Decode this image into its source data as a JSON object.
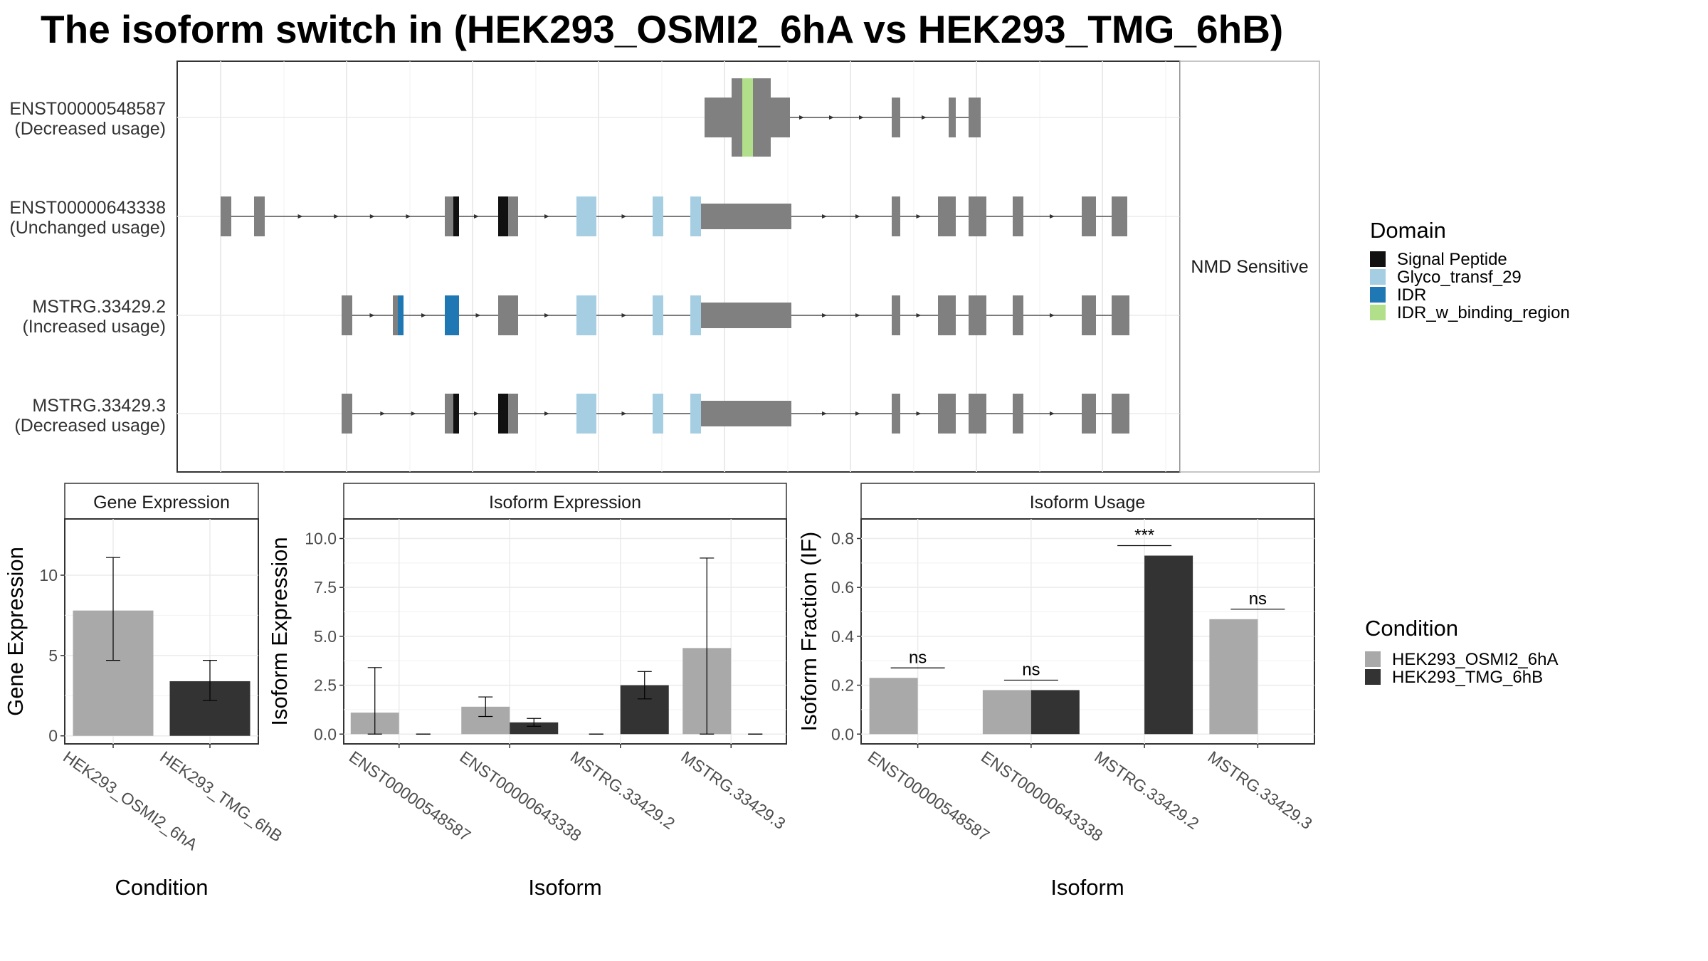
{
  "title": "The isoform switch in  (HEK293_OSMI2_6hA vs HEK293_TMG_6hB)",
  "structure": {
    "strip_label": "NMD Sensitive",
    "transcripts": [
      {
        "name": "ENST00000548587",
        "usage": "(Decreased usage)"
      },
      {
        "name": "ENST00000643338",
        "usage": "(Unchanged usage)"
      },
      {
        "name": "MSTRG.33429.2",
        "usage": "(Increased usage)"
      },
      {
        "name": "MSTRG.33429.3",
        "usage": "(Decreased usage)"
      }
    ]
  },
  "domain_legend": {
    "title": "Domain",
    "items": [
      {
        "label": "Signal Peptide",
        "color": "#111111"
      },
      {
        "label": "Glyco_transf_29",
        "color": "#a6cee3"
      },
      {
        "label": "IDR",
        "color": "#1f78b4"
      },
      {
        "label": "IDR_w_binding_region",
        "color": "#b2df8a"
      }
    ]
  },
  "condition_legend": {
    "title": "Condition",
    "items": [
      {
        "label": "HEK293_OSMI2_6hA",
        "color": "#a9a9a9"
      },
      {
        "label": "HEK293_TMG_6hB",
        "color": "#333333"
      }
    ]
  },
  "panels": {
    "gene": {
      "strip": "Gene Expression",
      "xlabel": "Condition",
      "ylabel": "Gene Expression"
    },
    "isoform_expr": {
      "strip": "Isoform Expression",
      "xlabel": "Isoform",
      "ylabel": "Isoform Expression"
    },
    "isoform_usage": {
      "strip": "Isoform Usage",
      "xlabel": "Isoform",
      "ylabel": "Isoform Fraction (IF)"
    }
  },
  "chart_data": [
    {
      "type": "bar",
      "title": "Gene Expression",
      "xlabel": "Condition",
      "ylabel": "Gene Expression",
      "categories": [
        "HEK293_OSMI2_6hA",
        "HEK293_TMG_6hB"
      ],
      "values": [
        7.8,
        3.4
      ],
      "error_low": [
        4.7,
        2.2
      ],
      "error_high": [
        11.1,
        4.7
      ],
      "colors": [
        "#a9a9a9",
        "#333333"
      ],
      "ylim": [
        -0.5,
        13.5
      ],
      "yticks": [
        0,
        5,
        10
      ]
    },
    {
      "type": "bar",
      "title": "Isoform Expression",
      "xlabel": "Isoform",
      "ylabel": "Isoform Expression",
      "categories": [
        "ENST00000548587",
        "ENST00000643338",
        "MSTRG.33429.2",
        "MSTRG.33429.3"
      ],
      "series": [
        {
          "name": "HEK293_OSMI2_6hA",
          "values": [
            1.1,
            1.4,
            0.0,
            4.4
          ],
          "error_low": [
            0.0,
            0.9,
            0.0,
            0.0
          ],
          "error_high": [
            3.4,
            1.9,
            0.0,
            9.0
          ]
        },
        {
          "name": "HEK293_TMG_6hB",
          "values": [
            0.0,
            0.6,
            2.5,
            0.0
          ],
          "error_low": [
            0.0,
            0.4,
            1.8,
            0.0
          ],
          "error_high": [
            0.0,
            0.8,
            3.2,
            0.0
          ]
        }
      ],
      "ylim": [
        -0.5,
        11.0
      ],
      "yticks": [
        0.0,
        2.5,
        5.0,
        7.5,
        10.0
      ]
    },
    {
      "type": "bar",
      "title": "Isoform Usage",
      "xlabel": "Isoform",
      "ylabel": "Isoform Fraction (IF)",
      "categories": [
        "ENST00000548587",
        "ENST00000643338",
        "MSTRG.33429.2",
        "MSTRG.33429.3"
      ],
      "series": [
        {
          "name": "HEK293_OSMI2_6hA",
          "values": [
            0.23,
            0.18,
            0.0,
            0.47
          ]
        },
        {
          "name": "HEK293_TMG_6hB",
          "values": [
            0.0,
            0.18,
            0.73,
            0.0
          ]
        }
      ],
      "significance": [
        "ns",
        "ns",
        "***",
        "ns"
      ],
      "ylim": [
        -0.04,
        0.88
      ],
      "yticks": [
        0.0,
        0.2,
        0.4,
        0.6,
        0.8
      ]
    }
  ]
}
